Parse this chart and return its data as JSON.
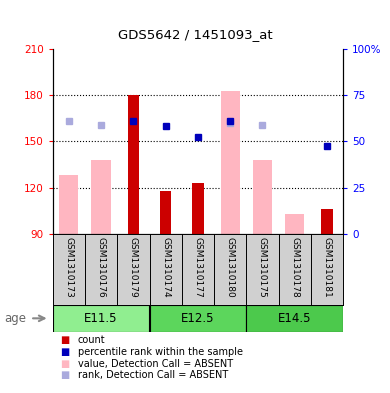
{
  "title": "GDS5642 / 1451093_at",
  "samples": [
    "GSM1310173",
    "GSM1310176",
    "GSM1310179",
    "GSM1310174",
    "GSM1310177",
    "GSM1310180",
    "GSM1310175",
    "GSM1310178",
    "GSM1310181"
  ],
  "groups": [
    {
      "label": "E11.5",
      "start": 0,
      "end": 3,
      "color": "#90EE90"
    },
    {
      "label": "E12.5",
      "start": 3,
      "end": 6,
      "color": "#5CD65C"
    },
    {
      "label": "E14.5",
      "start": 6,
      "end": 9,
      "color": "#4CC94C"
    }
  ],
  "ylim_left": [
    90,
    210
  ],
  "ylim_right": [
    0,
    100
  ],
  "yticks_left": [
    90,
    120,
    150,
    180,
    210
  ],
  "ytick_labels_left": [
    "90",
    "120",
    "150",
    "180",
    "210"
  ],
  "yticks_right": [
    0,
    25,
    50,
    75,
    100
  ],
  "ytick_labels_right": [
    "0",
    "25",
    "50",
    "75",
    "100%"
  ],
  "red_bars": [
    null,
    null,
    180,
    118,
    123,
    null,
    null,
    null,
    106
  ],
  "pink_bars": [
    128,
    138,
    null,
    null,
    null,
    183,
    138,
    103,
    null
  ],
  "blue_squares": [
    null,
    null,
    163,
    160,
    153,
    163,
    null,
    null,
    147
  ],
  "lavender_squares": [
    163,
    161,
    null,
    null,
    null,
    162,
    161,
    null,
    null
  ],
  "red_bar_color": "#CC0000",
  "pink_bar_color": "#FFB6C1",
  "blue_sq_color": "#0000BB",
  "lavender_sq_color": "#AAAADD",
  "red_bar_width": 0.35,
  "pink_bar_width": 0.6,
  "legend_items": [
    {
      "color": "#CC0000",
      "label": "count"
    },
    {
      "color": "#0000BB",
      "label": "percentile rank within the sample"
    },
    {
      "color": "#FFB6C1",
      "label": "value, Detection Call = ABSENT"
    },
    {
      "color": "#AAAADD",
      "label": "rank, Detection Call = ABSENT"
    }
  ],
  "sample_label_bg": "#D0D0D0",
  "marker_size": 5
}
